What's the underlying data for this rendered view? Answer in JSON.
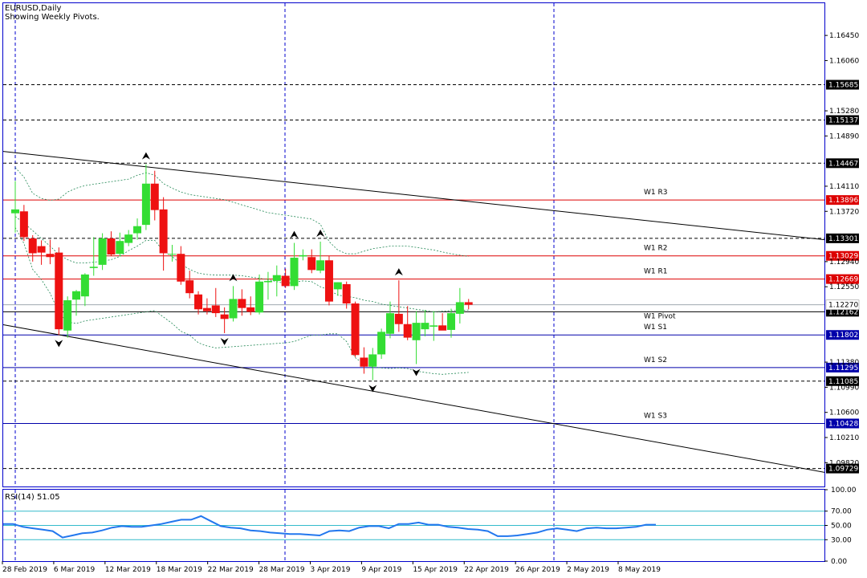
{
  "header": {
    "symbol": "EURUSD,Daily",
    "subtitle": "Showing Weekly Pivots."
  },
  "colors": {
    "bull": "#33dd33",
    "bear": "#ee1111",
    "frame": "#0000cc",
    "pivot_red": "#dd0000",
    "pivot_blue": "#0000aa",
    "envelope": "#228855",
    "rsi": "#2277ee",
    "rsi_level": "#33bbcc"
  },
  "chart_data": [
    {
      "type": "candlestick",
      "title": "EURUSD,Daily",
      "subtitle": "Showing Weekly Pivots.",
      "ylim": [
        1.0945,
        1.1695
      ],
      "price_ticks": [
        "1.16450",
        "1.16060",
        "1.15280",
        "1.14890",
        "1.14110",
        "1.13720",
        "1.12940",
        "1.12550",
        "1.11380",
        "1.10990",
        "1.10600",
        "1.10210",
        "1.09820"
      ],
      "x_tick_labels": [
        "28 Feb 2019",
        "6 Mar 2019",
        "12 Mar 2019",
        "18 Mar 2019",
        "22 Mar 2019",
        "28 Mar 2019",
        "3 Apr 2019",
        "9 Apr 2019",
        "15 Apr 2019",
        "22 Apr 2019",
        "26 Apr 2019",
        "2 May 2019",
        "8 May 2019"
      ],
      "candles": [
        {
          "date": "27 Feb 2019",
          "o": 1.1369,
          "h": 1.1419,
          "l": 1.1339,
          "c": 1.1375
        },
        {
          "date": "28 Feb 2019",
          "o": 1.1372,
          "h": 1.1382,
          "l": 1.1326,
          "c": 1.1332
        },
        {
          "date": "1 Mar 2019",
          "o": 1.133,
          "h": 1.1335,
          "l": 1.1294,
          "c": 1.1307
        },
        {
          "date": "4 Mar 2019",
          "o": 1.1318,
          "h": 1.1327,
          "l": 1.1289,
          "c": 1.1308
        },
        {
          "date": "5 Mar 2019",
          "o": 1.1306,
          "h": 1.1328,
          "l": 1.129,
          "c": 1.1301
        },
        {
          "date": "6 Mar 2019",
          "o": 1.1308,
          "h": 1.1316,
          "l": 1.118,
          "c": 1.1189
        },
        {
          "date": "7 Mar 2019",
          "o": 1.1187,
          "h": 1.124,
          "l": 1.1176,
          "c": 1.1234
        },
        {
          "date": "8 Mar 2019",
          "o": 1.1235,
          "h": 1.125,
          "l": 1.121,
          "c": 1.1248
        },
        {
          "date": "11 Mar 2019",
          "o": 1.124,
          "h": 1.1276,
          "l": 1.1225,
          "c": 1.1274
        },
        {
          "date": "12 Mar 2019",
          "o": 1.1284,
          "h": 1.1332,
          "l": 1.1272,
          "c": 1.1286
        },
        {
          "date": "13 Mar 2019",
          "o": 1.1289,
          "h": 1.1338,
          "l": 1.1281,
          "c": 1.133
        },
        {
          "date": "14 Mar 2019",
          "o": 1.133,
          "h": 1.1341,
          "l": 1.1303,
          "c": 1.1305
        },
        {
          "date": "15 Mar 2019",
          "o": 1.1306,
          "h": 1.1339,
          "l": 1.1302,
          "c": 1.1326
        },
        {
          "date": "18 Mar 2019",
          "o": 1.1323,
          "h": 1.1343,
          "l": 1.1318,
          "c": 1.1336
        },
        {
          "date": "19 Mar 2019",
          "o": 1.1338,
          "h": 1.1361,
          "l": 1.1328,
          "c": 1.1349
        },
        {
          "date": "20 Mar 2019",
          "o": 1.1351,
          "h": 1.1445,
          "l": 1.1343,
          "c": 1.1415
        },
        {
          "date": "21 Mar 2019",
          "o": 1.1415,
          "h": 1.1435,
          "l": 1.1358,
          "c": 1.1374
        },
        {
          "date": "22 Mar 2019",
          "o": 1.1375,
          "h": 1.1394,
          "l": 1.128,
          "c": 1.1307
        },
        {
          "date": "25 Mar 2019",
          "o": 1.1305,
          "h": 1.132,
          "l": 1.1294,
          "c": 1.1306
        },
        {
          "date": "26 Mar 2019",
          "o": 1.1306,
          "h": 1.1318,
          "l": 1.1258,
          "c": 1.1263
        },
        {
          "date": "27 Mar 2019",
          "o": 1.1265,
          "h": 1.128,
          "l": 1.1237,
          "c": 1.1245
        },
        {
          "date": "28 Mar 2019",
          "o": 1.1243,
          "h": 1.1248,
          "l": 1.1212,
          "c": 1.122
        },
        {
          "date": "29 Mar 2019",
          "o": 1.1222,
          "h": 1.1237,
          "l": 1.1212,
          "c": 1.1217
        },
        {
          "date": "1 Apr 2019",
          "o": 1.1226,
          "h": 1.1253,
          "l": 1.1208,
          "c": 1.1214
        },
        {
          "date": "2 Apr 2019",
          "o": 1.1212,
          "h": 1.1223,
          "l": 1.1183,
          "c": 1.1205
        },
        {
          "date": "3 Apr 2019",
          "o": 1.1206,
          "h": 1.1256,
          "l": 1.1201,
          "c": 1.1236
        },
        {
          "date": "4 Apr 2019",
          "o": 1.1236,
          "h": 1.1251,
          "l": 1.121,
          "c": 1.1222
        },
        {
          "date": "5 Apr 2019",
          "o": 1.1223,
          "h": 1.124,
          "l": 1.1211,
          "c": 1.1216
        },
        {
          "date": "8 Apr 2019",
          "o": 1.1215,
          "h": 1.1274,
          "l": 1.1212,
          "c": 1.1263
        },
        {
          "date": "9 Apr 2019",
          "o": 1.1262,
          "h": 1.1278,
          "l": 1.1235,
          "c": 1.1264
        },
        {
          "date": "10 Apr 2019",
          "o": 1.1264,
          "h": 1.1288,
          "l": 1.124,
          "c": 1.1273
        },
        {
          "date": "11 Apr 2019",
          "o": 1.1272,
          "h": 1.1283,
          "l": 1.1253,
          "c": 1.1256
        },
        {
          "date": "12 Apr 2019",
          "o": 1.1256,
          "h": 1.1323,
          "l": 1.125,
          "c": 1.13
        },
        {
          "date": "15 Apr 2019",
          "o": 1.1302,
          "h": 1.1313,
          "l": 1.1296,
          "c": 1.1304
        },
        {
          "date": "16 Apr 2019",
          "o": 1.1301,
          "h": 1.1313,
          "l": 1.1276,
          "c": 1.1281
        },
        {
          "date": "17 Apr 2019",
          "o": 1.128,
          "h": 1.1325,
          "l": 1.1276,
          "c": 1.1296
        },
        {
          "date": "18 Apr 2019",
          "o": 1.1296,
          "h": 1.1303,
          "l": 1.1226,
          "c": 1.1232
        },
        {
          "date": "19 Apr 2019",
          "o": 1.1251,
          "h": 1.1262,
          "l": 1.1241,
          "c": 1.1262
        },
        {
          "date": "22 Apr 2019",
          "o": 1.1259,
          "h": 1.1263,
          "l": 1.1221,
          "c": 1.1229
        },
        {
          "date": "23 Apr 2019",
          "o": 1.1229,
          "h": 1.1232,
          "l": 1.1146,
          "c": 1.1149
        },
        {
          "date": "24 Apr 2019",
          "o": 1.1145,
          "h": 1.1161,
          "l": 1.112,
          "c": 1.1131
        },
        {
          "date": "25 Apr 2019",
          "o": 1.1131,
          "h": 1.116,
          "l": 1.111,
          "c": 1.115
        },
        {
          "date": "26 Apr 2019",
          "o": 1.115,
          "h": 1.119,
          "l": 1.1143,
          "c": 1.1185
        },
        {
          "date": "29 Apr 2019",
          "o": 1.1182,
          "h": 1.1232,
          "l": 1.1175,
          "c": 1.1214
        },
        {
          "date": "30 Apr 2019",
          "o": 1.1213,
          "h": 1.1265,
          "l": 1.1185,
          "c": 1.1197
        },
        {
          "date": "1 May 2019",
          "o": 1.1197,
          "h": 1.1225,
          "l": 1.1172,
          "c": 1.1176
        },
        {
          "date": "2 May 2019",
          "o": 1.1172,
          "h": 1.1217,
          "l": 1.1135,
          "c": 1.1199
        },
        {
          "date": "3 May 2019",
          "o": 1.1189,
          "h": 1.1219,
          "l": 1.1178,
          "c": 1.1199
        },
        {
          "date": "6 May 2019",
          "o": 1.1193,
          "h": 1.1217,
          "l": 1.1171,
          "c": 1.1195
        },
        {
          "date": "7 May 2019",
          "o": 1.1195,
          "h": 1.1214,
          "l": 1.1188,
          "c": 1.1187
        },
        {
          "date": "8 May 2019",
          "o": 1.1188,
          "h": 1.1221,
          "l": 1.1176,
          "c": 1.1214
        },
        {
          "date": "9 May 2019",
          "o": 1.1213,
          "h": 1.1253,
          "l": 1.1198,
          "c": 1.1231
        },
        {
          "date": "10 May 2019",
          "o": 1.1231,
          "h": 1.1236,
          "l": 1.122,
          "c": 1.1227
        }
      ],
      "pivots": [
        {
          "label": "W1 R3",
          "price": "1.13896",
          "value": 1.13896,
          "color": "#dd0000"
        },
        {
          "label": "W1 R2",
          "price": "1.13029",
          "value": 1.13029,
          "color": "#dd0000"
        },
        {
          "label": "W1 R1",
          "price": "1.12669",
          "value": 1.12669,
          "color": "#dd0000"
        },
        {
          "label": "W1 Pivot",
          "price": "1.12162",
          "value": 1.12162,
          "color": "#000000"
        },
        {
          "label": "W1 S1",
          "price": "1.11802",
          "value": 1.11802,
          "color": "#0000aa"
        },
        {
          "label": "W1 S2",
          "price": "1.11295",
          "value": 1.11295,
          "color": "#0000aa"
        },
        {
          "label": "W1 S3",
          "price": "1.10428",
          "value": 1.10428,
          "color": "#0000aa"
        }
      ],
      "horizontal_levels": [
        {
          "price": "1.15685",
          "value": 1.15685
        },
        {
          "price": "1.15137",
          "value": 1.15137
        },
        {
          "price": "1.14467",
          "value": 1.14467
        },
        {
          "price": "1.13301",
          "value": 1.13301
        },
        {
          "price": "1.11085",
          "value": 1.11085
        },
        {
          "price": "1.09729",
          "value": 1.09729
        }
      ],
      "current_price": {
        "price": "1.12270",
        "value": 1.1227
      },
      "trendlines": [
        {
          "from": {
            "date": "26 Feb 2019",
            "value": 1.1465
          },
          "to": {
            "date": "beyond axis",
            "value": 1.1328
          }
        },
        {
          "from": {
            "date": "26 Feb 2019",
            "value": 1.1196
          },
          "to": {
            "date": "beyond axis",
            "value": 1.0967
          }
        }
      ],
      "fractals": [
        {
          "date": "6 Mar 2019",
          "dir": "down"
        },
        {
          "date": "20 Mar 2019",
          "dir": "up"
        },
        {
          "date": "2 Apr 2019",
          "dir": "down"
        },
        {
          "date": "3 Apr 2019",
          "dir": "up"
        },
        {
          "date": "12 Apr 2019",
          "dir": "up"
        },
        {
          "date": "17 Apr 2019",
          "dir": "up"
        },
        {
          "date": "25 Apr 2019",
          "dir": "down"
        },
        {
          "date": "30 Apr 2019",
          "dir": "up"
        },
        {
          "date": "2 May 2019",
          "dir": "down"
        }
      ],
      "envelope_upper": [
        1.144,
        1.1425,
        1.14,
        1.1392,
        1.1389,
        1.1391,
        1.1402,
        1.1408,
        1.1412,
        1.1414,
        1.1416,
        1.1418,
        1.142,
        1.1422,
        1.1428,
        1.1432,
        1.1428,
        1.1415,
        1.1408,
        1.1402,
        1.1398,
        1.1396,
        1.1394,
        1.1392,
        1.139,
        1.1386,
        1.1382,
        1.1378,
        1.1374,
        1.137,
        1.1368,
        1.1366,
        1.1364,
        1.1362,
        1.136,
        1.1352,
        1.1325,
        1.1312,
        1.1306,
        1.1306,
        1.131,
        1.1314,
        1.1316,
        1.1318,
        1.1318,
        1.1318,
        1.1316,
        1.1314,
        1.1312,
        1.1309,
        1.1306,
        1.1304,
        1.1302
      ],
      "envelope_middle": [
        1.1364,
        1.1354,
        1.1342,
        1.133,
        1.1318,
        1.1305,
        1.1297,
        1.1292,
        1.1292,
        1.1293,
        1.1295,
        1.1297,
        1.1302,
        1.1311,
        1.1318,
        1.1327,
        1.1327,
        1.131,
        1.1302,
        1.129,
        1.1282,
        1.1276,
        1.1274,
        1.1273,
        1.1273,
        1.1273,
        1.1272,
        1.127,
        1.1268,
        1.1266,
        1.1263,
        1.126,
        1.1262,
        1.1264,
        1.1263,
        1.1255,
        1.125,
        1.1242,
        1.124,
        1.1238,
        1.1234,
        1.1232,
        1.1228,
        1.1226,
        1.1224,
        1.1222,
        1.122,
        1.1218,
        1.1216,
        1.1217,
        1.1218,
        1.1218,
        1.1219
      ],
      "envelope_lower": [
        1.1347,
        1.1322,
        1.1282,
        1.1266,
        1.1245,
        1.1215,
        1.12,
        1.1198,
        1.1202,
        1.1204,
        1.1206,
        1.1208,
        1.121,
        1.1212,
        1.1214,
        1.1216,
        1.1218,
        1.1208,
        1.1198,
        1.1186,
        1.118,
        1.1168,
        1.1163,
        1.116,
        1.1161,
        1.1162,
        1.1163,
        1.1164,
        1.1165,
        1.1166,
        1.1167,
        1.1168,
        1.117,
        1.1175,
        1.118,
        1.118,
        1.1182,
        1.1182,
        1.117,
        1.1145,
        1.1135,
        1.113,
        1.1129,
        1.1128,
        1.1129,
        1.1128,
        1.1124,
        1.1122,
        1.112,
        1.1119,
        1.112,
        1.1121,
        1.1122
      ]
    },
    {
      "type": "line",
      "title": "RSI(14) 51.05",
      "ylim": [
        0,
        100
      ],
      "y_tick_labels": [
        "100.00",
        "70.00",
        "50.00",
        "30.00",
        "0.00"
      ],
      "levels": [
        70,
        50,
        30
      ],
      "series": [
        {
          "name": "RSI(14)",
          "values": [
            52,
            52,
            48,
            46,
            44,
            42,
            33,
            36,
            39,
            40,
            43,
            47,
            49,
            48,
            48,
            50,
            52,
            55,
            58,
            58,
            63,
            56,
            49,
            47,
            46,
            43,
            42,
            40,
            39,
            38,
            38,
            37,
            36,
            42,
            43,
            42,
            47,
            49,
            49,
            46,
            52,
            52,
            54,
            51,
            51,
            48,
            47,
            45,
            44,
            42,
            35,
            35,
            36,
            38,
            40,
            44,
            46,
            44,
            42,
            46,
            47,
            46,
            46,
            47,
            48,
            51,
            51
          ]
        }
      ]
    }
  ]
}
